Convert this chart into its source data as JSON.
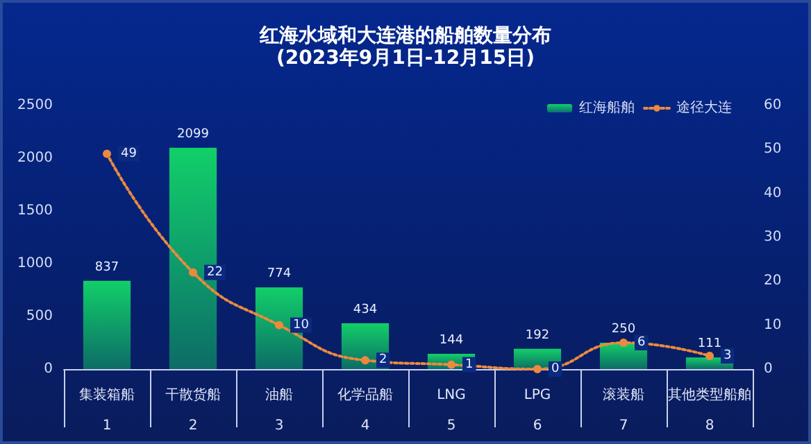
{
  "chart_data": {
    "type": "bar",
    "title": "红海水域和大连港的船舶数量分布",
    "subtitle": "(2023年9月1日-12月15日)",
    "categories": [
      "集装箱船\n1",
      "干散货船\n2",
      "油船\n3",
      "化学品船\n4",
      "LNG\n5",
      "LPG\n6",
      "滚装船\n7",
      "其他类型船舶\n8"
    ],
    "series": [
      {
        "name": "红海船舶",
        "color": "#12cf68",
        "values": [
          837,
          2099,
          774,
          434,
          144,
          192,
          250,
          111
        ]
      },
      {
        "name": "途径大连",
        "type": "line",
        "axis": "y2",
        "color": "#ea8a3f",
        "values": [
          49,
          22,
          10,
          2,
          1,
          0,
          6,
          3
        ]
      }
    ],
    "ylim": [
      0,
      2500
    ],
    "yticks": [
      0,
      500,
      1000,
      1500,
      2000,
      2500
    ],
    "y2lim": [
      0,
      60
    ],
    "y2ticks": [
      0,
      10,
      20,
      30,
      40,
      50,
      60
    ],
    "data_labels": true,
    "grid": false,
    "legend": "top right",
    "marker": "circle",
    "line_style": "dotted"
  }
}
